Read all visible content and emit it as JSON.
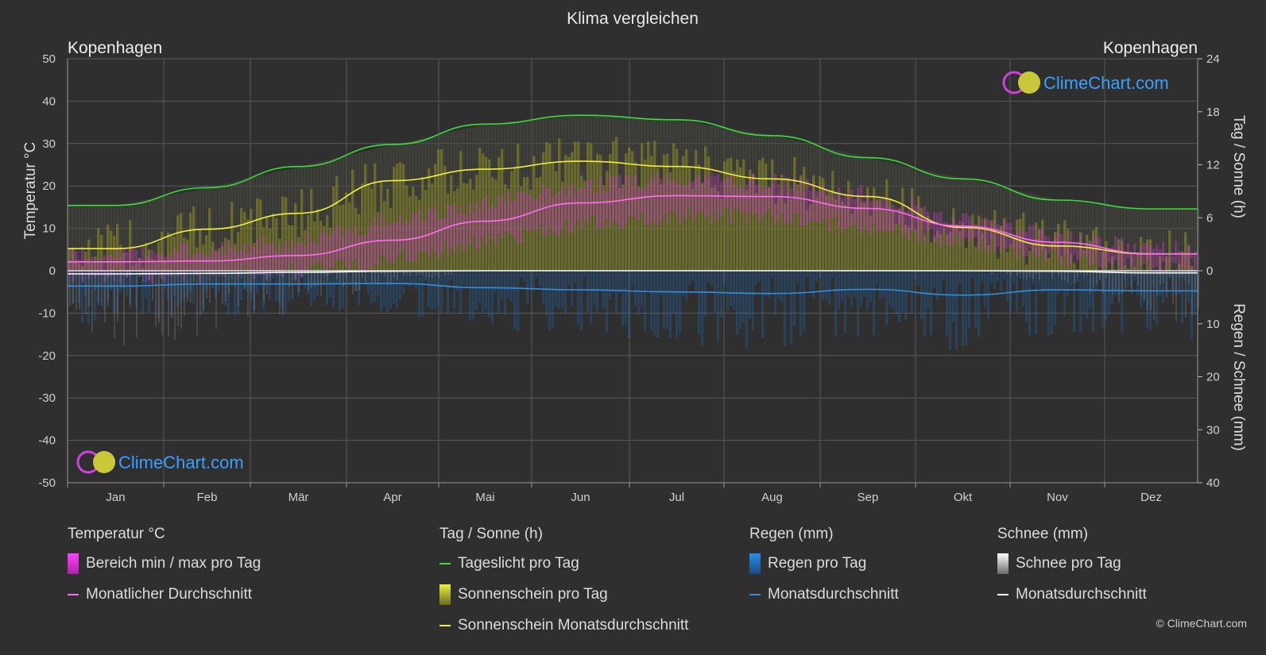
{
  "title": "Klima vergleichen",
  "location_left": "Kopenhagen",
  "location_right": "Kopenhagen",
  "watermark": "ClimeChart.com",
  "copyright": "© ClimeChart.com",
  "colors": {
    "background": "#2f2f2f",
    "grid": "#5a5a5a",
    "temp_range": "#d23cc8",
    "temp_avg": "#ff6ef0",
    "daylight": "#3ddc3d",
    "sunshine_fill": "#8c8c2a",
    "sunshine_avg": "#f0f03c",
    "rain": "#1e78c8",
    "rain_avg": "#2f8fe0",
    "snow": "#9a9a9a",
    "snow_avg": "#ffffff",
    "watermark_text": "#3aa0ff"
  },
  "legend": {
    "temperature": {
      "heading": "Temperatur °C",
      "range_label": "Bereich min / max pro Tag",
      "avg_label": "Monatlicher Durchschnitt"
    },
    "sun": {
      "heading": "Tag / Sonne (h)",
      "daylight_label": "Tageslicht pro Tag",
      "sunshine_label": "Sonnenschein pro Tag",
      "sunshine_avg_label": "Sonnenschein Monatsdurchschnitt"
    },
    "rain": {
      "heading": "Regen (mm)",
      "rain_label": "Regen pro Tag",
      "avg_label": "Monatsdurchschnitt"
    },
    "snow": {
      "heading": "Schnee (mm)",
      "snow_label": "Schnee pro Tag",
      "avg_label": "Monatsdurchschnitt"
    }
  },
  "chart_data": {
    "type": "line",
    "title": "Klima vergleichen",
    "categories": [
      "Jan",
      "Feb",
      "Mär",
      "Apr",
      "Mai",
      "Jun",
      "Jul",
      "Aug",
      "Sep",
      "Okt",
      "Nov",
      "Dez"
    ],
    "y_left": {
      "label": "Temperatur °C",
      "ticks": [
        50,
        40,
        30,
        20,
        10,
        0,
        -10,
        -20,
        -30,
        -40,
        -50
      ],
      "range": [
        -50,
        50
      ]
    },
    "y_right_top": {
      "label": "Tag / Sonne (h)",
      "ticks": [
        24,
        18,
        12,
        6,
        0
      ],
      "range": [
        0,
        24
      ]
    },
    "y_right_bottom": {
      "label": "Regen / Schnee (mm)",
      "ticks": [
        0,
        10,
        20,
        30,
        40
      ],
      "range": [
        0,
        40
      ]
    },
    "grid": true,
    "series": [
      {
        "name": "Tageslicht pro Tag",
        "axis": "hours",
        "values": [
          7.4,
          9.4,
          11.8,
          14.3,
          16.6,
          17.6,
          17.1,
          15.3,
          12.8,
          10.4,
          8.0,
          7.0
        ]
      },
      {
        "name": "Sonnenschein Monatsdurchschnitt",
        "axis": "hours",
        "values": [
          2.5,
          4.7,
          6.5,
          10.2,
          11.5,
          12.4,
          11.8,
          10.4,
          8.4,
          4.9,
          2.8,
          1.9
        ]
      },
      {
        "name": "Monatlicher Durchschnitt",
        "axis": "temperature",
        "values": [
          2.1,
          2.3,
          3.6,
          7.2,
          11.7,
          16.0,
          17.7,
          17.5,
          14.7,
          10.5,
          6.7,
          4.0
        ]
      },
      {
        "name": "Regen Monatsdurchschnitt",
        "axis": "precipitation",
        "values": [
          2.9,
          2.5,
          2.5,
          2.4,
          3.2,
          3.6,
          4.0,
          4.3,
          3.5,
          4.6,
          3.6,
          3.8
        ]
      },
      {
        "name": "Schnee Monatsdurchschnitt",
        "axis": "precipitation",
        "values": [
          0.6,
          0.5,
          0.3,
          0.1,
          0,
          0,
          0,
          0,
          0,
          0,
          0.1,
          0.4
        ]
      }
    ],
    "temp_range_monthly": {
      "min": [
        -1,
        -1,
        0,
        3,
        7,
        11,
        13,
        13,
        10,
        7,
        3,
        1
      ],
      "max": [
        4,
        5,
        7,
        12,
        16,
        20,
        22,
        21,
        18,
        12,
        8,
        5
      ]
    }
  }
}
